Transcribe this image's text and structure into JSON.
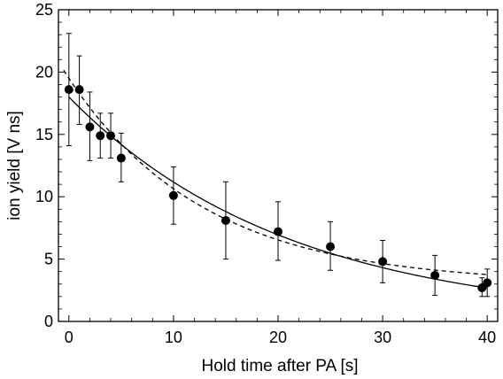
{
  "chart_data": {
    "type": "scatter",
    "title": "",
    "xlabel": "Hold time after PA [s]",
    "ylabel": "ion yield [V ns]",
    "xlim": [
      -1,
      41
    ],
    "ylim": [
      0,
      25
    ],
    "x_ticks": [
      0,
      10,
      20,
      30,
      40
    ],
    "y_ticks": [
      0,
      5,
      10,
      15,
      20,
      25
    ],
    "x_tick_labels": [
      "0",
      "10",
      "20",
      "30",
      "40"
    ],
    "y_tick_labels": [
      "0",
      "5",
      "10",
      "15",
      "20",
      "25"
    ],
    "grid": false,
    "legend": "none",
    "series": [
      {
        "kind": "points_with_error_bars",
        "color": "#000000",
        "points": [
          {
            "x": 0,
            "y": 18.6,
            "err_lo": 14.1,
            "err_hi": 23.1
          },
          {
            "x": 1,
            "y": 18.6,
            "err_lo": 15.8,
            "err_hi": 21.3
          },
          {
            "x": 2,
            "y": 15.6,
            "err_lo": 12.9,
            "err_hi": 18.4
          },
          {
            "x": 3,
            "y": 14.9,
            "err_lo": 13.1,
            "err_hi": 16.7
          },
          {
            "x": 4,
            "y": 14.9,
            "err_lo": 13.1,
            "err_hi": 16.7
          },
          {
            "x": 5,
            "y": 13.1,
            "err_lo": 11.2,
            "err_hi": 15.1
          },
          {
            "x": 10,
            "y": 10.1,
            "err_lo": 7.8,
            "err_hi": 12.4
          },
          {
            "x": 15,
            "y": 8.1,
            "err_lo": 5.0,
            "err_hi": 11.2
          },
          {
            "x": 20,
            "y": 7.2,
            "err_lo": 4.9,
            "err_hi": 9.6
          },
          {
            "x": 25,
            "y": 6.0,
            "err_lo": 4.1,
            "err_hi": 8.0
          },
          {
            "x": 30,
            "y": 4.8,
            "err_lo": 3.1,
            "err_hi": 6.5
          },
          {
            "x": 35,
            "y": 3.7,
            "err_lo": 2.1,
            "err_hi": 5.3
          },
          {
            "x": 39.5,
            "y": 2.7,
            "err_lo": 2.0,
            "err_hi": 3.5
          },
          {
            "x": 40,
            "y": 3.1,
            "err_lo": 2.0,
            "err_hi": 4.2
          }
        ]
      },
      {
        "kind": "fit_solid",
        "color": "#000000",
        "dash": "none",
        "model": {
          "a": 18.0,
          "tau": 21.0,
          "c": 0.0
        },
        "x_range": [
          0,
          40
        ]
      },
      {
        "kind": "fit_dashed",
        "color": "#000000",
        "dash": "5,4",
        "model": {
          "a": 16.5,
          "tau": 13.0,
          "c": 3.0
        },
        "x_range": [
          -0.5,
          40
        ]
      }
    ]
  }
}
